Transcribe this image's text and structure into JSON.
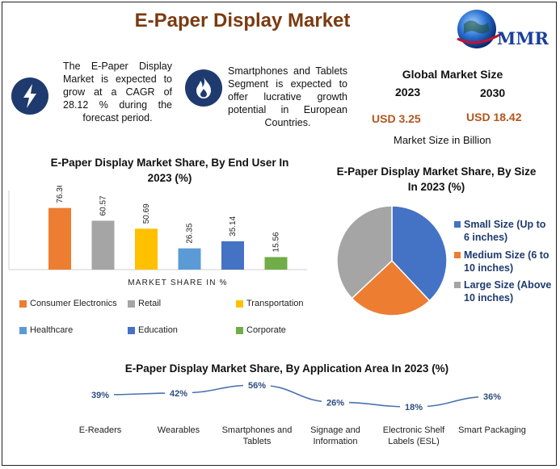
{
  "page": {
    "title": "E-Paper Display Market",
    "logo_text": "MMR"
  },
  "icons": [
    "lightning-icon",
    "flame-icon"
  ],
  "info": {
    "cagr_text": "The E-Paper Display Market is expected to grow at a CAGR of 28.12 % during the forecast period.",
    "segment_text": "Smartphones and Tablets Segment is expected to offer lucrative growth potential in European Countries."
  },
  "global_market": {
    "title": "Global Market Size",
    "year_start": "2023",
    "year_end": "2030",
    "value_start": "USD 3.25",
    "value_end": "USD 18.42",
    "unit": "Market Size in Billion",
    "value_color": "#b2561f"
  },
  "chart_data": [
    {
      "type": "bar",
      "title": "E-Paper Display Market Share, By End User In 2023 (%)",
      "xlabel": "MARKET SHARE IN %",
      "ylim": [
        0,
        100
      ],
      "categories": [
        "Consumer Electronics",
        "Retail",
        "Transportation",
        "Healthcare",
        "Education",
        "Corporate"
      ],
      "values": [
        76.36,
        60.57,
        50.69,
        26.35,
        35.14,
        15.56
      ],
      "data_labels": [
        "76.36",
        "60.57",
        "50.69",
        "26.35",
        "35.14",
        "15.56"
      ],
      "colors": [
        "#ed7d31",
        "#a5a5a5",
        "#ffc000",
        "#5b9bd5",
        "#4472c4",
        "#70ad47"
      ],
      "legend_position": "bottom"
    },
    {
      "type": "pie",
      "title": "E-Paper Display Market Share, By Size In 2023 (%)",
      "categories": [
        "Small Size (Up to 6 inches)",
        "Medium Size (6 to 10 inches)",
        "Large Size (Above 10 inches)"
      ],
      "values": [
        38,
        25,
        37
      ],
      "colors": [
        "#4472c4",
        "#ed7d31",
        "#a5a5a5"
      ],
      "legend_position": "right"
    },
    {
      "type": "line",
      "title": "E-Paper Display Market Share, By Application Area In 2023 (%)",
      "categories": [
        "E-Readers",
        "Wearables",
        "Smartphones and Tablets",
        "Signage and Information",
        "Electronic Shelf Labels (ESL)",
        "Smart Packaging"
      ],
      "values": [
        39,
        42,
        56,
        26,
        18,
        36
      ],
      "data_labels": [
        "39%",
        "42%",
        "56%",
        "26%",
        "18%",
        "36%"
      ],
      "line_color": "#4a72b0",
      "label_color": "#2e4d80",
      "ylim": [
        0,
        100
      ]
    }
  ]
}
